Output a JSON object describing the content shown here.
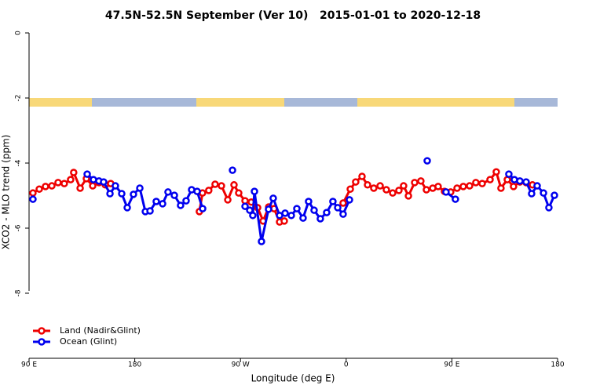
{
  "chart_data": {
    "type": "line",
    "title": "47.5N-52.5N September (Ver 10)   2015-01-01 to 2020-12-18",
    "x_label": "Longitude (deg E)",
    "y_label": "XCO2 - MLO trend (ppm)",
    "xlim": [
      90,
      540
    ],
    "xticks": [
      {
        "value": 90,
        "label": "90 E"
      },
      {
        "value": 180,
        "label": "180"
      },
      {
        "value": 270,
        "label": "90 W"
      },
      {
        "value": 360,
        "label": "0"
      },
      {
        "value": 450,
        "label": "90 E"
      },
      {
        "value": 540,
        "label": "180"
      }
    ],
    "ylim": [
      -10,
      0
    ],
    "yticks": [
      0,
      -2,
      -4,
      -6,
      -8
    ],
    "legend": "bottom-left",
    "series": [
      {
        "name": "Land (Nadir&Glint)",
        "color": "#ee0000",
        "x": [
          93.3,
          98.7,
          104,
          109.4,
          114.7,
          120,
          125.4,
          128,
          133.5,
          138.8,
          144.2,
          149.5,
          154.9,
          159.5,
          null,
          235,
          237.7,
          243,
          248.4,
          253.8,
          259.2,
          264.5,
          268.5,
          273.9,
          279.2,
          284.6,
          289.3,
          294,
          298.6,
          303.3,
          307.3,
          null,
          357.4,
          363.5,
          368.1,
          373.5,
          378.2,
          383.5,
          388.9,
          394.2,
          399.6,
          404.9,
          408.9,
          413,
          418.3,
          423.6,
          428.3,
          433.7,
          438.3,
          443.7,
          449,
          454.4,
          459.7,
          465.1,
          470.4,
          475.8,
          482.5,
          487.8,
          491.8,
          497.2,
          502.5,
          507.9,
          513.2,
          518.6
        ],
        "values": [
          -4.92,
          -4.8,
          -4.72,
          -4.7,
          -4.6,
          -4.63,
          -4.51,
          -4.29,
          -4.77,
          -4.48,
          -4.7,
          -4.6,
          -4.67,
          -4.63,
          null,
          -5.49,
          -4.92,
          -4.84,
          -4.65,
          -4.7,
          -5.13,
          -4.67,
          -4.92,
          -5.16,
          -5.2,
          -5.37,
          -5.78,
          -5.35,
          -5.4,
          -5.81,
          -5.78,
          null,
          -5.23,
          -4.8,
          -4.58,
          -4.41,
          -4.67,
          -4.77,
          -4.7,
          -4.82,
          -4.92,
          -4.84,
          -4.7,
          -5.01,
          -4.6,
          -4.55,
          -4.82,
          -4.77,
          -4.72,
          -4.87,
          -4.89,
          -4.77,
          -4.72,
          -4.7,
          -4.6,
          -4.63,
          -4.51,
          -4.27,
          -4.77,
          -4.51,
          -4.72,
          -4.58,
          -4.6,
          -4.67
        ]
      },
      {
        "name": "Ocean (Glint)",
        "color": "#0000ee",
        "x": [
          93.3,
          null,
          139.5,
          144.8,
          149.5,
          153.5,
          158.9,
          163.5,
          168.9,
          173.6,
          178.9,
          184.3,
          189,
          193,
          198.3,
          203.7,
          208.3,
          213.7,
          219,
          223.7,
          228.4,
          233.1,
          237.8,
          null,
          263.2,
          null,
          273.9,
          277.9,
          280.5,
          281.9,
          287.9,
          293.9,
          297.9,
          303.3,
          308,
          313.3,
          318,
          323.3,
          328,
          332.7,
          338,
          343.4,
          348.7,
          352.8,
          357.4,
          362.8,
          null,
          429,
          null,
          445,
          453,
          null,
          498.5,
          503.2,
          507.9,
          513.2,
          517.9,
          522.6,
          528,
          532.6,
          537.3
        ],
        "values": [
          -5.11,
          null,
          -4.34,
          -4.51,
          -4.55,
          -4.58,
          -4.94,
          -4.7,
          -4.94,
          -5.37,
          -4.96,
          -4.77,
          -5.49,
          -5.47,
          -5.18,
          -5.25,
          -4.89,
          -4.99,
          -5.3,
          -5.16,
          -4.82,
          -4.87,
          -5.4,
          null,
          -4.22,
          null,
          -5.33,
          -5.45,
          -5.61,
          -4.87,
          -6.41,
          -5.42,
          -5.08,
          -5.61,
          -5.54,
          -5.61,
          -5.4,
          -5.69,
          -5.18,
          -5.45,
          -5.71,
          -5.52,
          -5.18,
          -5.37,
          -5.57,
          -5.13,
          null,
          -3.93,
          null,
          -4.89,
          -5.11,
          null,
          -4.34,
          -4.51,
          -4.55,
          -4.58,
          -4.94,
          -4.7,
          -4.92,
          -5.37,
          -4.99
        ]
      }
    ]
  }
}
